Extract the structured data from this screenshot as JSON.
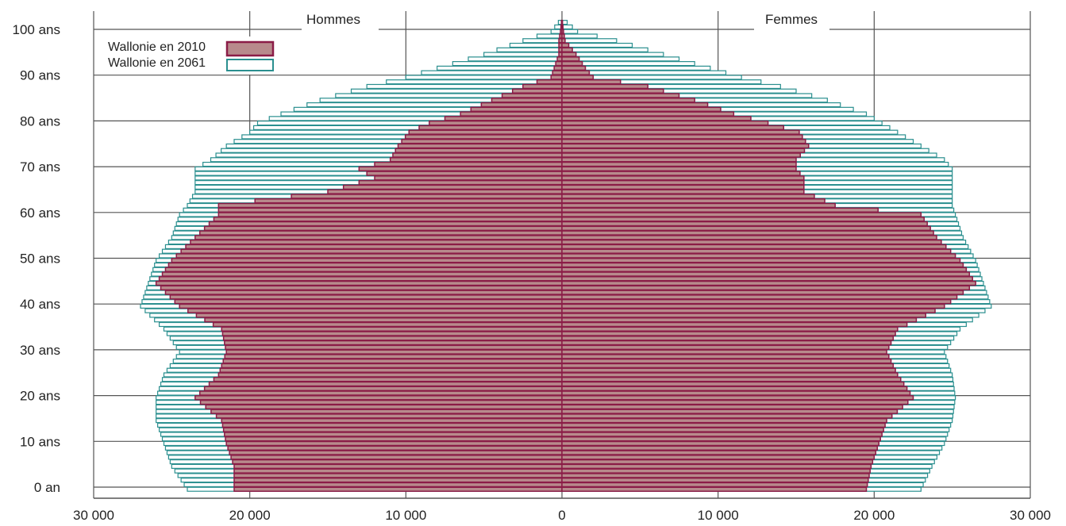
{
  "chart_data": {
    "type": "bar",
    "orientation": "horizontal",
    "layout": "population-pyramid",
    "title": "",
    "xlabel": "",
    "ylabel": "",
    "left_label": "Hommes",
    "right_label": "Femmes",
    "xlim": [
      -30000,
      30000
    ],
    "ylim": [
      0,
      105
    ],
    "x_ticks": [
      -30000,
      -20000,
      -10000,
      0,
      10000,
      20000,
      30000
    ],
    "x_tick_labels": [
      "30 000",
      "20 000",
      "10 000",
      "0",
      "10 000",
      "20 000",
      "30 000"
    ],
    "y_ticks": [
      0,
      10,
      20,
      30,
      40,
      50,
      60,
      70,
      80,
      90,
      100
    ],
    "y_tick_labels": [
      "0 an",
      "10 ans",
      "20 ans",
      "30 ans",
      "40 ans",
      "50 ans",
      "60 ans",
      "70 ans",
      "80 ans",
      "90 ans",
      "100 ans"
    ],
    "grid": true,
    "legend_position": "top-left",
    "legend": [
      "Wallonie en 2010",
      "Wallonie en 2061"
    ],
    "series_styles": {
      "w2010": {
        "fill": "#b88a8c",
        "stroke": "#8b1c47"
      },
      "w2061": {
        "fill": "#ffffff",
        "stroke": "#2a8f8f"
      }
    },
    "age_anchors": [
      0,
      5,
      10,
      15,
      20,
      25,
      30,
      35,
      40,
      45,
      50,
      55,
      60,
      62,
      65,
      68,
      70,
      72,
      75,
      78,
      80,
      82,
      85,
      88,
      90,
      92,
      95,
      98,
      100,
      103
    ],
    "series": [
      {
        "key": "w2010_hommes",
        "name": "Wallonie en 2010",
        "side": "Hommes",
        "values": [
          21000,
          21000,
          21500,
          21800,
          23500,
          22000,
          21500,
          21800,
          24500,
          26000,
          25000,
          23500,
          22000,
          22000,
          15000,
          12000,
          13000,
          11000,
          10500,
          9800,
          8500,
          6500,
          4500,
          2500,
          700,
          500,
          200,
          200,
          100,
          0
        ]
      },
      {
        "key": "w2010_femmes",
        "name": "Wallonie en 2010",
        "side": "Femmes",
        "values": [
          19500,
          19800,
          20300,
          20800,
          22500,
          21500,
          20800,
          21500,
          24500,
          26500,
          25500,
          24000,
          23000,
          17500,
          15500,
          15500,
          15000,
          15000,
          15800,
          15200,
          13200,
          11000,
          8500,
          5500,
          2000,
          1500,
          900,
          200,
          100,
          0
        ]
      },
      {
        "key": "w2061_hommes",
        "name": "Wallonie en 2061",
        "side": "Hommes",
        "values": [
          24000,
          25000,
          25500,
          26000,
          26000,
          25500,
          24500,
          25500,
          27000,
          26500,
          26000,
          25000,
          24500,
          24000,
          23500,
          23500,
          23500,
          22500,
          21500,
          20000,
          19500,
          18000,
          15500,
          12500,
          10000,
          8000,
          5000,
          2500,
          700,
          0
        ]
      },
      {
        "key": "w2061_femmes",
        "name": "Wallonie en 2061",
        "side": "Femmes",
        "values": [
          23000,
          23700,
          24500,
          25000,
          25200,
          25000,
          24500,
          25500,
          27500,
          27000,
          26500,
          25700,
          25200,
          25000,
          25000,
          25000,
          25000,
          24500,
          23000,
          21500,
          20500,
          19500,
          17000,
          14000,
          11500,
          9500,
          6500,
          3500,
          1000,
          0
        ]
      }
    ]
  }
}
